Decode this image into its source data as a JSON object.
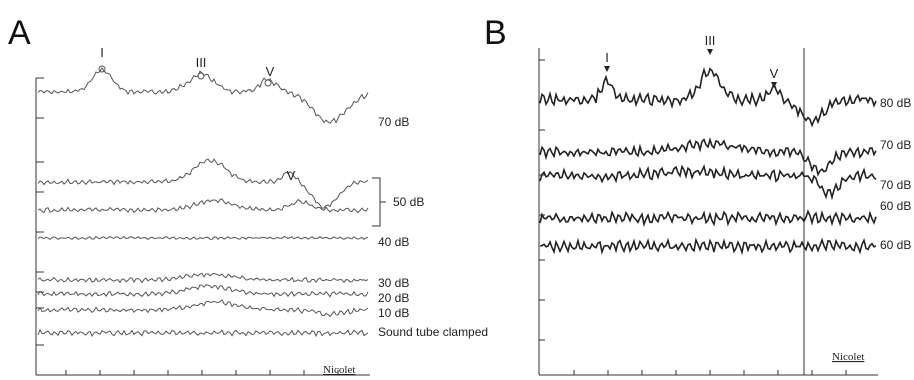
{
  "chart_data": [
    {
      "type": "line",
      "panel": "A",
      "peaks": [
        "I",
        "III",
        "V"
      ],
      "second_trace_peak": "V",
      "traces": [
        {
          "label": "70 dB"
        },
        {
          "label": "50 dB",
          "count": 2
        },
        {
          "label": "40 dB"
        },
        {
          "label": "30 dB"
        },
        {
          "label": "20 dB"
        },
        {
          "label": "10 dB"
        },
        {
          "label": "Sound tube clamped"
        }
      ],
      "brand": "Nicolet"
    },
    {
      "type": "line",
      "panel": "B",
      "peaks": [
        "I",
        "III",
        "V"
      ],
      "traces": [
        {
          "label": "80 dB"
        },
        {
          "label": "70 dB"
        },
        {
          "label": "70 dB"
        },
        {
          "label": "60 dB"
        },
        {
          "label": "60 dB"
        }
      ],
      "brand": "Nicolet"
    }
  ]
}
